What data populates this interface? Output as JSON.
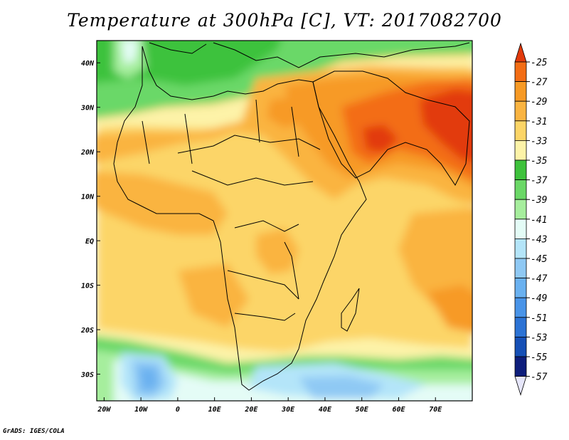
{
  "title": "Temperature at 300hPa [C], VT: 2017082700",
  "credit": "GrADS: IGES/COLA",
  "map": {
    "lon_range": [
      -22,
      80
    ],
    "lat_range": [
      -36,
      45
    ],
    "y_ticks": [
      {
        "label": "40N",
        "lat": 40
      },
      {
        "label": "30N",
        "lat": 30
      },
      {
        "label": "20N",
        "lat": 20
      },
      {
        "label": "10N",
        "lat": 10
      },
      {
        "label": "EQ",
        "lat": 0
      },
      {
        "label": "10S",
        "lat": -10
      },
      {
        "label": "20S",
        "lat": -20
      },
      {
        "label": "30S",
        "lat": -30
      }
    ],
    "x_ticks": [
      {
        "label": "20W",
        "lon": -20
      },
      {
        "label": "10W",
        "lon": -10
      },
      {
        "label": "0",
        "lon": 0
      },
      {
        "label": "10E",
        "lon": 10
      },
      {
        "label": "20E",
        "lon": 20
      },
      {
        "label": "30E",
        "lon": 30
      },
      {
        "label": "40E",
        "lon": 40
      },
      {
        "label": "50E",
        "lon": 50
      },
      {
        "label": "60E",
        "lon": 60
      },
      {
        "label": "70E",
        "lon": 70
      }
    ]
  },
  "colorbar": {
    "labels": [
      "-25",
      "-27",
      "-29",
      "-31",
      "-33",
      "-35",
      "-37",
      "-39",
      "-41",
      "-43",
      "-45",
      "-47",
      "-49",
      "-51",
      "-53",
      "-55",
      "-57"
    ],
    "colors": [
      "#e23a0b",
      "#f36d14",
      "#f79a25",
      "#fab441",
      "#fcd567",
      "#fdf3a8",
      "#3ec23c",
      "#6bd867",
      "#a6ee9d",
      "#e4fcf6",
      "#b4e5f9",
      "#8fc9f4",
      "#6ab1f0",
      "#4994e8",
      "#2c73d5",
      "#1650b6",
      "#0e1e7c"
    ]
  }
}
